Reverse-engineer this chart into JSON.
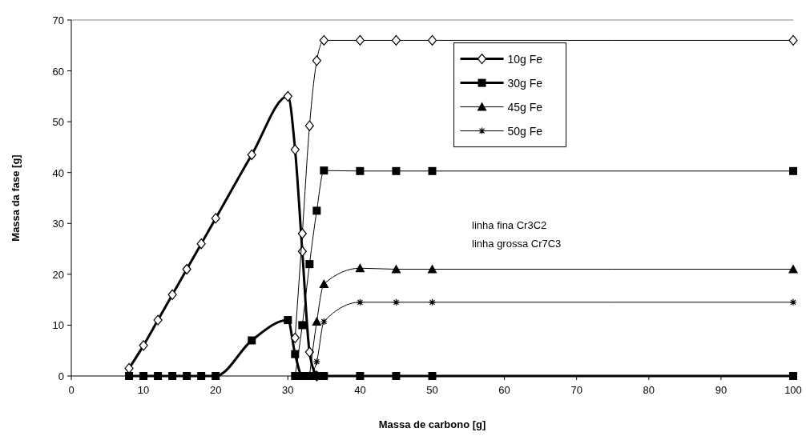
{
  "chart_data": {
    "type": "line",
    "xlabel": "Massa de carbono [g]",
    "ylabel": "Massa da fase [g]",
    "xlim": [
      0,
      100
    ],
    "xticks": [
      0,
      10,
      20,
      30,
      40,
      50,
      60,
      70,
      80,
      90,
      100
    ],
    "ylim": [
      0,
      70
    ],
    "yticks": [
      0,
      10,
      20,
      30,
      40,
      50,
      60,
      70
    ],
    "grid": false,
    "legend": "top right",
    "annotations": [
      "linha fina Cr3C2",
      "linha grossa Cr7C3"
    ],
    "series": [
      {
        "name": "10g Fe",
        "color": "#000000",
        "marker": "diamond",
        "x": [
          8,
          10,
          12,
          14,
          16,
          18,
          20,
          25,
          30,
          31,
          32,
          33,
          34
        ],
        "values": [
          1.5,
          6,
          11,
          16,
          21,
          26,
          31,
          43.5,
          55,
          44.5,
          24.5,
          4.7,
          0
        ]
      },
      {
        "name": "30g Fe",
        "color": "#000000",
        "marker": "square",
        "x": [
          8,
          10,
          12,
          14,
          16,
          18,
          20,
          25,
          30,
          31,
          32,
          33,
          34,
          35,
          40,
          45,
          50,
          100
        ],
        "values": [
          0,
          0,
          0,
          0,
          0,
          0,
          0,
          7,
          11,
          4.3,
          0,
          0,
          0,
          0,
          0,
          0,
          0,
          0
        ]
      },
      {
        "name": "45g Fe",
        "color": "#000000",
        "marker": "triangle",
        "x": [
          33,
          34,
          35,
          40,
          45,
          50,
          100
        ],
        "values": [
          0,
          10.7,
          18.1,
          21.2,
          21,
          21,
          21
        ]
      },
      {
        "name": "50g Fe",
        "color": "#000000",
        "marker": "cross",
        "x": [
          33,
          34,
          35,
          40,
          45,
          50,
          100
        ],
        "values": [
          0,
          2.8,
          10.7,
          14.5,
          14.5,
          14.5,
          14.5
        ]
      },
      {
        "color": "#000000",
        "marker": "diamond",
        "x": [
          31,
          32,
          33,
          34,
          35,
          40,
          45,
          50,
          100
        ],
        "values": [
          7.5,
          28,
          49.2,
          62,
          66,
          66,
          66,
          66,
          66
        ]
      },
      {
        "color": "#000000",
        "marker": "square",
        "x": [
          31,
          32,
          33,
          34,
          35,
          40,
          45,
          50,
          100
        ],
        "values": [
          0,
          10,
          22,
          32.5,
          40.4,
          40.3,
          40.3,
          40.3,
          40.3
        ]
      }
    ]
  }
}
